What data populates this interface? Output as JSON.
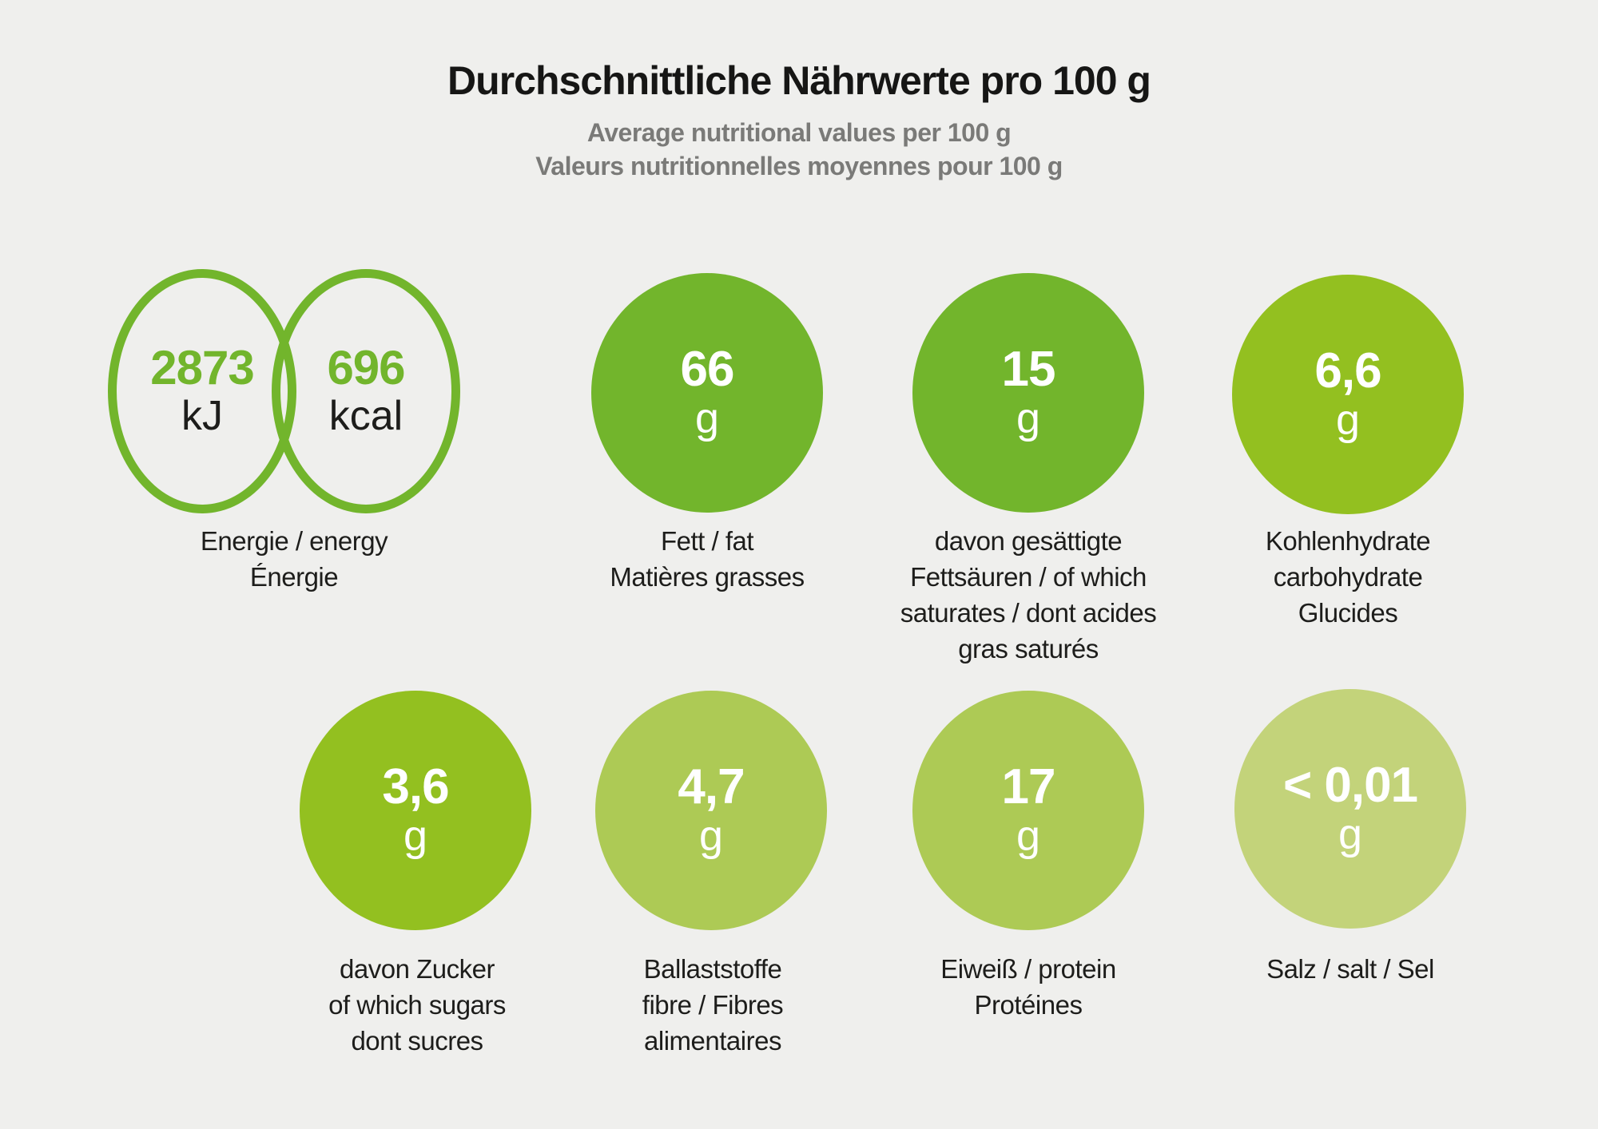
{
  "header": {
    "title": "Durchschnittliche Nährwerte pro 100 g",
    "subtitle_en": "Average nutritional values per 100 g",
    "subtitle_fr": "Valeurs nutritionnelles moyennes pour 100 g"
  },
  "colors": {
    "background": "#efefed",
    "title_text": "#161615",
    "subtitle_text": "#7a7a78",
    "label_text": "#1d1d1b",
    "green_dark": "#72b52c",
    "green_mid": "#93c020",
    "green_light": "#adca55",
    "green_pale": "#c3d37a",
    "bubble_text": "#ffffff"
  },
  "energy": {
    "kj": {
      "value": "2873",
      "unit": "kJ"
    },
    "kcal": {
      "value": "696",
      "unit": "kcal"
    },
    "label_lines": [
      "Energie / energy",
      "Énergie"
    ]
  },
  "nutrients": {
    "fat": {
      "value": "66",
      "unit": "g",
      "color": "#72b52c",
      "label_lines": [
        "Fett / fat",
        "Matières grasses"
      ]
    },
    "saturates": {
      "value": "15",
      "unit": "g",
      "color": "#72b52c",
      "label_lines": [
        "davon gesättigte",
        "Fettsäuren / of which",
        "saturates / dont acides",
        "gras saturés"
      ]
    },
    "carbohydrate": {
      "value": "6,6",
      "unit": "g",
      "color": "#93c020",
      "label_lines": [
        "Kohlenhydrate",
        "carbohydrate",
        "Glucides"
      ]
    },
    "sugars": {
      "value": "3,6",
      "unit": "g",
      "color": "#93c020",
      "label_lines": [
        "davon Zucker",
        "of which sugars",
        "dont sucres"
      ]
    },
    "fibre": {
      "value": "4,7",
      "unit": "g",
      "color": "#adca55",
      "label_lines": [
        "Ballaststoffe",
        "fibre / Fibres",
        "alimentaires"
      ]
    },
    "protein": {
      "value": "17",
      "unit": "g",
      "color": "#adca55",
      "label_lines": [
        "Eiweiß / protein",
        "Protéines"
      ]
    },
    "salt": {
      "value": "< 0,01",
      "unit": "g",
      "color": "#c3d37a",
      "label_lines": [
        "Salz / salt / Sel"
      ]
    }
  },
  "chart_data": {
    "type": "bubble",
    "title": "Durchschnittliche Nährwerte pro 100 g",
    "subtitles": [
      "Average nutritional values per 100 g",
      "Valeurs nutritionnelles moyennes pour 100 g"
    ],
    "unit_default": "g",
    "items": [
      {
        "category": "Energie / energy / Énergie",
        "values": [
          {
            "value": 2873,
            "unit": "kJ"
          },
          {
            "value": 696,
            "unit": "kcal"
          }
        ],
        "style": "outlined"
      },
      {
        "category": "Fett / fat / Matières grasses",
        "value": 66,
        "unit": "g",
        "color": "#72b52c"
      },
      {
        "category": "davon gesättigte Fettsäuren / of which saturates / dont acides gras saturés",
        "value": 15,
        "unit": "g",
        "color": "#72b52c"
      },
      {
        "category": "Kohlenhydrate / carbohydrate / Glucides",
        "value": 6.6,
        "unit": "g",
        "color": "#93c020"
      },
      {
        "category": "davon Zucker / of which sugars / dont sucres",
        "value": 3.6,
        "unit": "g",
        "color": "#93c020"
      },
      {
        "category": "Ballaststoffe / fibre / Fibres alimentaires",
        "value": 4.7,
        "unit": "g",
        "color": "#adca55"
      },
      {
        "category": "Eiweiß / protein / Protéines",
        "value": 17,
        "unit": "g",
        "color": "#adca55"
      },
      {
        "category": "Salz / salt / Sel",
        "value": "< 0,01",
        "unit": "g",
        "color": "#c3d37a"
      }
    ]
  }
}
